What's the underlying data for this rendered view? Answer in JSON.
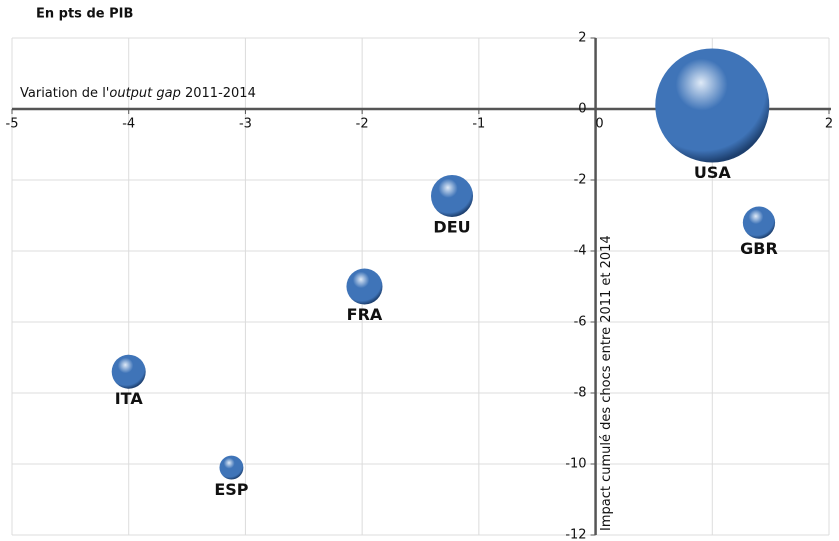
{
  "chart_data": {
    "type": "bubble",
    "title": "En pts de PIB",
    "x_label_parts": [
      "Variation de l'",
      "output gap",
      " 2011-2014"
    ],
    "y_label": "Impact cumulé des chocs entre 2011 et 2014",
    "labels": [
      "USA",
      "GBR",
      "DEU",
      "FRA",
      "ITA",
      "ESP"
    ],
    "x": [
      1.0,
      1.4,
      -1.23,
      -1.98,
      -4.0,
      -3.12
    ],
    "values": [
      0.1,
      -3.2,
      -2.45,
      -5.0,
      -7.4,
      -10.1
    ],
    "sizes": [
      100,
      8,
      13.6,
      10,
      8.9,
      4.4
    ],
    "color": "#3f74b8",
    "xlim": [
      -5,
      2
    ],
    "xticks": [
      -5,
      -4,
      -3,
      -2,
      -1,
      0,
      1,
      2
    ],
    "ylim": [
      -12,
      2
    ],
    "yticks": [
      -12,
      -10,
      -8,
      -6,
      -4,
      -2,
      0,
      2
    ],
    "grid": true
  }
}
